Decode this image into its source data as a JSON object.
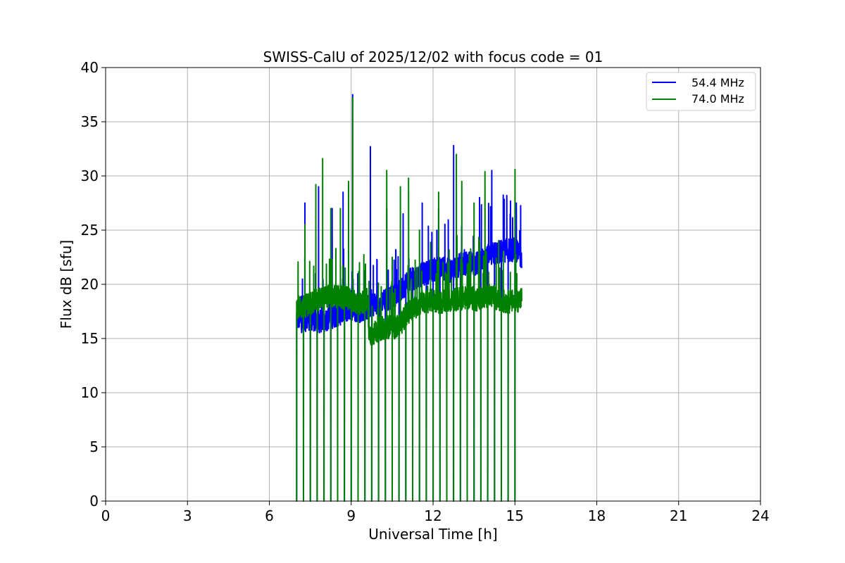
{
  "chart_data": {
    "type": "line",
    "title": "SWISS-CalU of 2025/12/02 with focus code = 01",
    "xlabel": "Universal Time [h]",
    "ylabel": "Flux dB [sfu]",
    "xlim": [
      0,
      24
    ],
    "ylim": [
      0,
      40
    ],
    "xticks": [
      0,
      3,
      6,
      9,
      12,
      15,
      18,
      21,
      24
    ],
    "yticks": [
      0,
      5,
      10,
      15,
      20,
      25,
      30,
      35,
      40
    ],
    "grid": true,
    "legend_position": "top-right",
    "calibration_spike_times": [
      7.0,
      7.25,
      7.5,
      7.75,
      8.0,
      8.25,
      8.5,
      8.75,
      9.0,
      9.25,
      9.5,
      9.75,
      10.0,
      10.25,
      10.5,
      10.75,
      11.0,
      11.25,
      11.5,
      11.75,
      12.0,
      12.25,
      12.5,
      12.75,
      13.0,
      13.25,
      13.5,
      13.75,
      14.0,
      14.25,
      14.5,
      14.75,
      15.0
    ],
    "series": [
      {
        "name": "54.4 MHz",
        "color": "#0000ff",
        "x": [
          7.0,
          7.2,
          7.5,
          7.8,
          8.0,
          8.3,
          8.6,
          9.0,
          9.3,
          9.6,
          9.8,
          10.0,
          10.3,
          10.6,
          10.8,
          11.0,
          11.3,
          11.6,
          12.0,
          12.3,
          12.6,
          13.0,
          13.3,
          13.6,
          14.0,
          14.3,
          14.6,
          15.0,
          15.25
        ],
        "y": [
          17.0,
          16.6,
          16.9,
          16.5,
          16.7,
          17.0,
          17.3,
          17.8,
          17.5,
          17.9,
          18.2,
          18.1,
          18.6,
          19.0,
          19.3,
          20.1,
          20.6,
          20.9,
          21.3,
          21.6,
          21.2,
          21.8,
          22.0,
          21.9,
          22.6,
          22.9,
          23.1,
          23.2,
          22.6
        ],
        "spikes": [
          [
            7.3,
            27.5
          ],
          [
            7.8,
            29.0
          ],
          [
            8.3,
            27.0
          ],
          [
            8.7,
            28.5
          ],
          [
            9.05,
            37.5
          ],
          [
            9.7,
            32.7
          ],
          [
            10.3,
            27.0
          ],
          [
            10.9,
            26.5
          ],
          [
            11.6,
            27.5
          ],
          [
            12.2,
            27.0
          ],
          [
            12.75,
            32.8
          ],
          [
            13.7,
            28.0
          ],
          [
            14.15,
            30.5
          ],
          [
            14.7,
            28.2
          ],
          [
            15.05,
            27.5
          ]
        ]
      },
      {
        "name": "74.0 MHz",
        "color": "#008000",
        "x": [
          7.0,
          7.2,
          7.5,
          7.8,
          8.0,
          8.3,
          8.6,
          9.0,
          9.3,
          9.6,
          9.65,
          9.8,
          10.0,
          10.3,
          10.6,
          10.8,
          11.0,
          11.3,
          11.6,
          12.0,
          12.3,
          12.6,
          13.0,
          13.3,
          13.6,
          14.0,
          14.2,
          14.3,
          14.6,
          15.0,
          15.25
        ],
        "y": [
          18.0,
          17.8,
          18.3,
          18.6,
          18.7,
          18.9,
          18.8,
          18.6,
          18.2,
          18.6,
          15.2,
          15.4,
          15.8,
          16.1,
          16.0,
          16.3,
          17.2,
          17.8,
          18.4,
          18.5,
          18.3,
          18.5,
          18.7,
          18.8,
          18.6,
          18.9,
          19.0,
          18.6,
          18.4,
          18.4,
          18.7
        ],
        "spikes": [
          [
            7.05,
            22.0
          ],
          [
            7.3,
            25.5
          ],
          [
            7.7,
            29.2
          ],
          [
            7.95,
            31.6
          ],
          [
            8.25,
            27.0
          ],
          [
            8.6,
            27.0
          ],
          [
            8.9,
            29.5
          ],
          [
            9.05,
            37.2
          ],
          [
            9.3,
            22.0
          ],
          [
            10.3,
            30.5
          ],
          [
            10.5,
            22.5
          ],
          [
            10.8,
            29.0
          ],
          [
            11.1,
            29.8
          ],
          [
            11.5,
            25.0
          ],
          [
            12.2,
            28.5
          ],
          [
            12.85,
            32.0
          ],
          [
            13.05,
            29.5
          ],
          [
            13.5,
            27.5
          ],
          [
            13.9,
            30.4
          ],
          [
            14.4,
            24.0
          ],
          [
            15.0,
            30.6
          ]
        ]
      }
    ]
  }
}
